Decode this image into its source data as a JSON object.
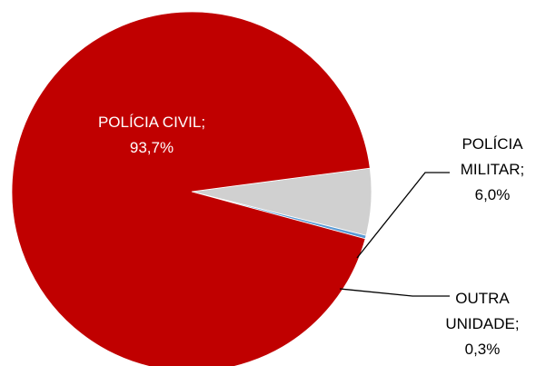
{
  "chart_data": {
    "type": "pie",
    "title": "",
    "slices": [
      {
        "category": "POLÍCIA CIVIL",
        "value": 93.7,
        "label_name": "POLÍCIA CIVIL;",
        "label_value": "93,7%",
        "color": "#C00000"
      },
      {
        "category": "POLÍCIA MILITAR",
        "value": 6.0,
        "label_name_line1": "POLÍCIA",
        "label_name_line2": "MILITAR;",
        "label_value": "6,0%",
        "color": "#D0D0D0"
      },
      {
        "category": "OUTRA UNIDADE",
        "value": 0.3,
        "label_name_line1": "OUTRA",
        "label_name_line2": "UNIDADE;",
        "label_value": "0,3%",
        "color": "#5B9BD5"
      }
    ],
    "legend": "none",
    "data_labels": "category; percent"
  }
}
